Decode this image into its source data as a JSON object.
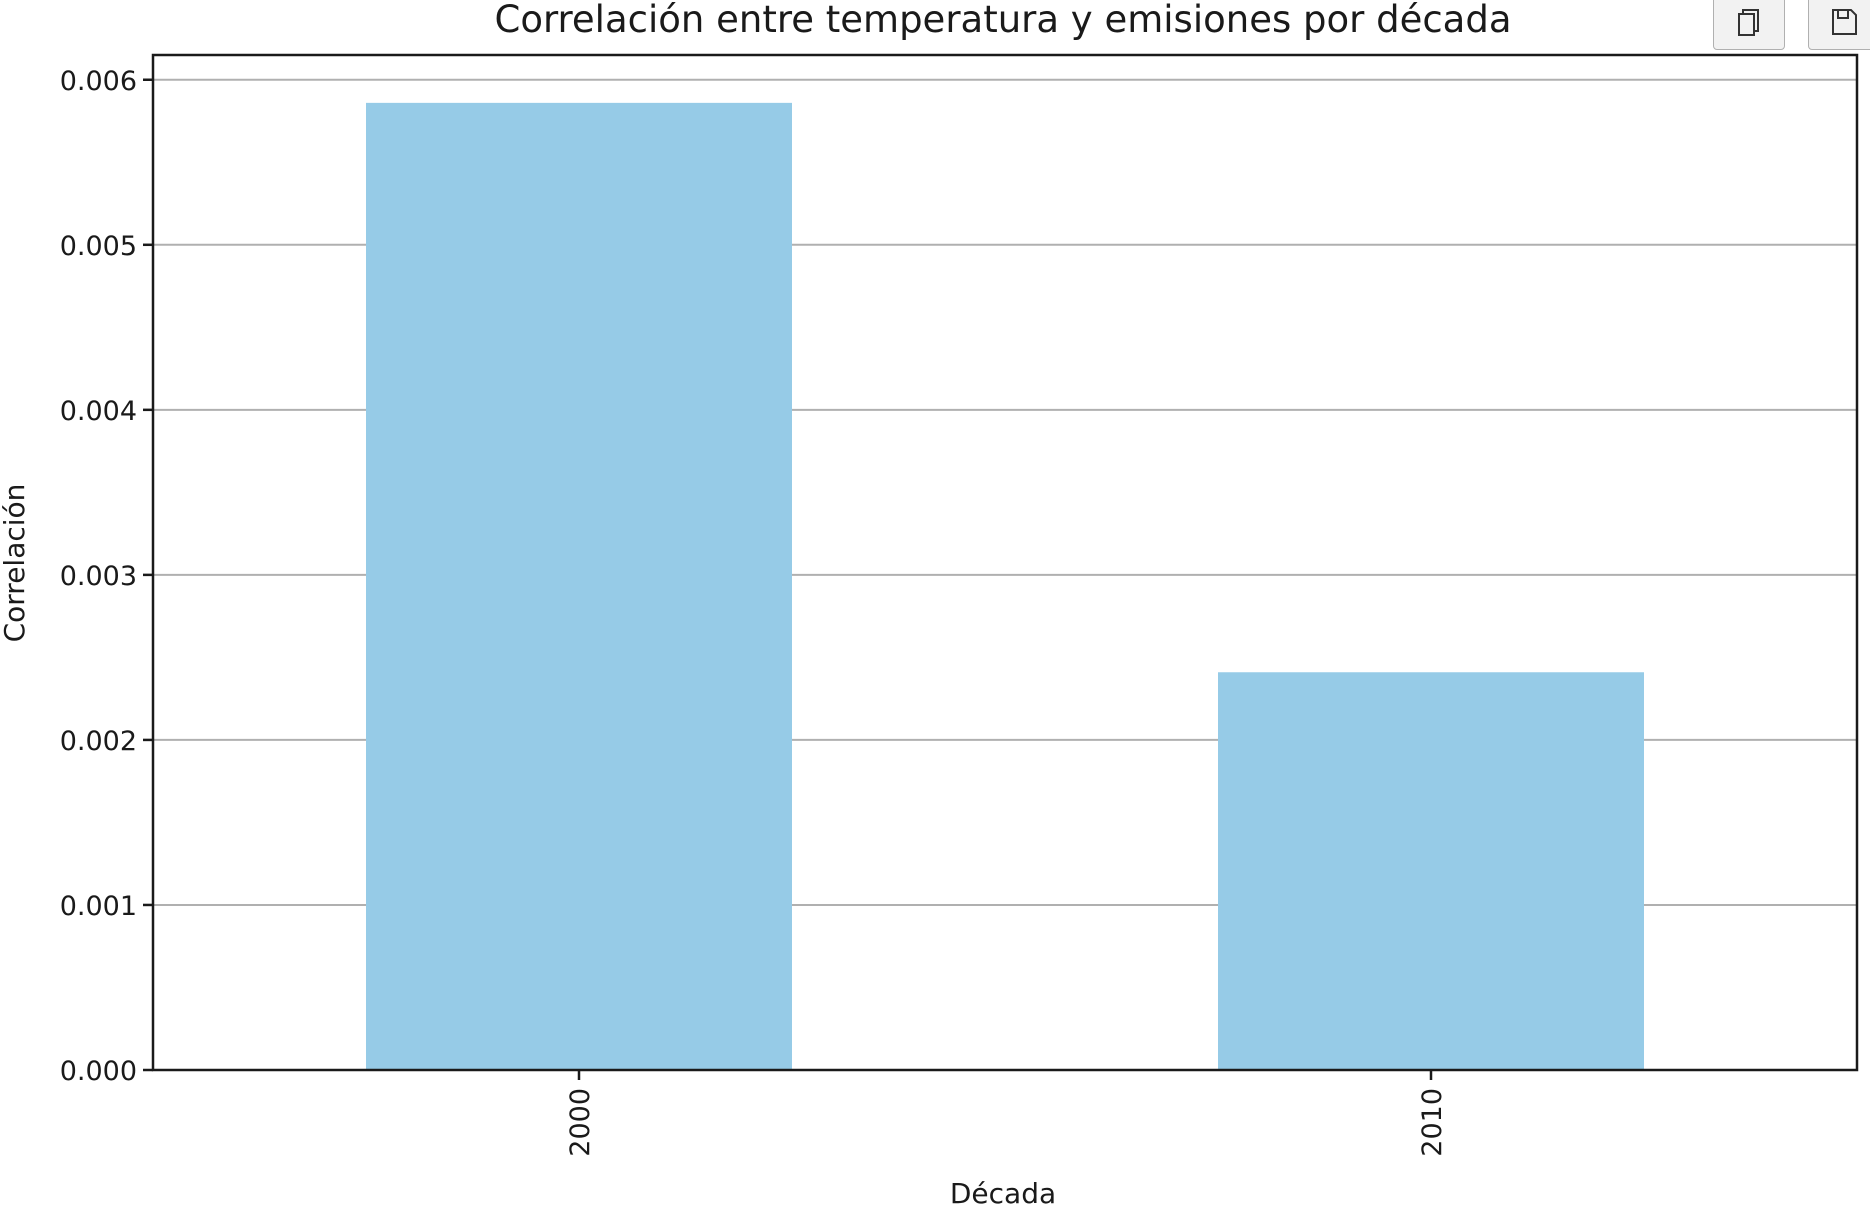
{
  "toolbar": {
    "copy_icon": "copy-icon",
    "save_icon": "save-icon"
  },
  "chart_data": {
    "type": "bar",
    "title": "Correlación entre temperatura y emisiones por década",
    "xlabel": "Década",
    "ylabel": "Correlación",
    "categories": [
      "2000",
      "2010"
    ],
    "values": [
      0.00586,
      0.00241
    ],
    "ylim": [
      0,
      0.00615
    ],
    "yticks": [
      0.0,
      0.001,
      0.002,
      0.003,
      0.004,
      0.005,
      0.006
    ],
    "ytick_labels": [
      "0.000",
      "0.001",
      "0.002",
      "0.003",
      "0.004",
      "0.005",
      "0.006"
    ],
    "xtick_rotation": "vertical",
    "bar_color": "#96cbe7",
    "grid": "horizontal",
    "grid_color": "#b0b0b0",
    "legend": "none"
  }
}
